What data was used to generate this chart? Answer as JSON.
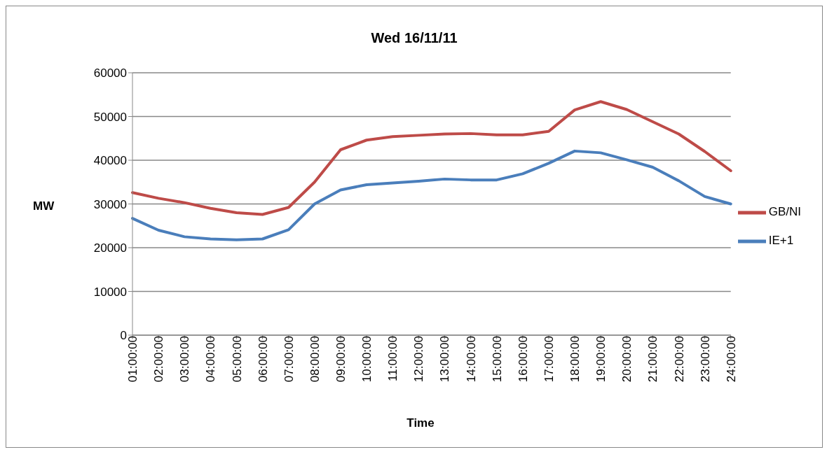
{
  "chart_data": {
    "type": "line",
    "title": "Wed 16/11/11",
    "xlabel": "Time",
    "ylabel": "MW",
    "categories": [
      "01:00:00",
      "02:00:00",
      "03:00:00",
      "04:00:00",
      "05:00:00",
      "06:00:00",
      "07:00:00",
      "08:00:00",
      "09:00:00",
      "10:00:00",
      "11:00:00",
      "12:00:00",
      "13:00:00",
      "14:00:00",
      "15:00:00",
      "16:00:00",
      "17:00:00",
      "18:00:00",
      "19:00:00",
      "20:00:00",
      "21:00:00",
      "22:00:00",
      "23:00:00",
      "24:00:00"
    ],
    "series": [
      {
        "name": "IE+1",
        "color": "#4a7ebb",
        "values": [
          26700,
          24000,
          22500,
          22000,
          21800,
          22000,
          24100,
          30000,
          33200,
          34400,
          34800,
          35200,
          35700,
          35500,
          35500,
          36900,
          39300,
          42100,
          41700,
          40100,
          38400,
          35300,
          31700,
          30000
        ]
      },
      {
        "name": "GB/NI",
        "color": "#be4b48",
        "values": [
          32600,
          31300,
          30300,
          29000,
          28000,
          27600,
          29200,
          35000,
          42400,
          44600,
          45400,
          45700,
          46000,
          46100,
          45800,
          45800,
          46600,
          51500,
          53400,
          51600,
          48800,
          46000,
          42000,
          37600
        ]
      }
    ],
    "ylim": [
      0,
      60000
    ],
    "yticks": [
      0,
      10000,
      20000,
      30000,
      40000,
      50000,
      60000
    ],
    "grid": "y",
    "legend": "right",
    "marker": "none",
    "line_style": "solid"
  }
}
